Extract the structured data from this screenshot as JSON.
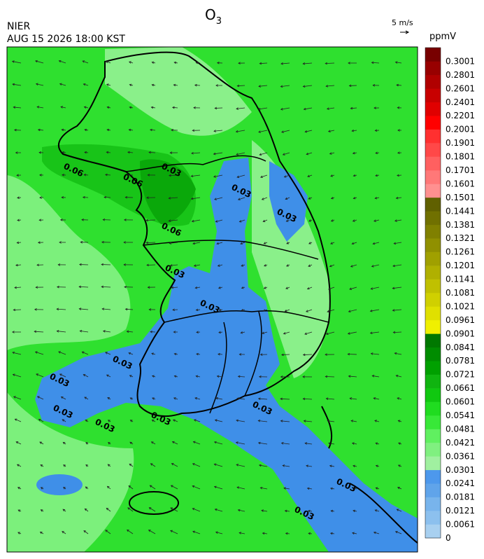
{
  "header": {
    "title": {
      "text": "O",
      "subscript": "3"
    },
    "source": "NIER",
    "datetime": "AUG 15 2026 18:00 KST",
    "wind_scale": "5 m/s"
  },
  "legend": {
    "unit": "ppmV",
    "labels": [
      "0",
      "0.0061",
      "0.0121",
      "0.0181",
      "0.0241",
      "0.0301",
      "0.0361",
      "0.0421",
      "0.0481",
      "0.0541",
      "0.0601",
      "0.0661",
      "0.0721",
      "0.0781",
      "0.0841",
      "0.0901",
      "0.0961",
      "0.1021",
      "0.1081",
      "0.1141",
      "0.1201",
      "0.1261",
      "0.1321",
      "0.1381",
      "0.1441",
      "0.1501",
      "0.1601",
      "0.1701",
      "0.1801",
      "0.1901",
      "0.2001",
      "0.2201",
      "0.2401",
      "0.2601",
      "0.2801",
      "0.3001"
    ],
    "colors": [
      "#a8d0f0",
      "#8cc0ee",
      "#78b4ec",
      "#60a4ea",
      "#4d98ec",
      "#a0f0a0",
      "#80f080",
      "#60f060",
      "#38e838",
      "#20dc20",
      "#10c810",
      "#10b410",
      "#00a000",
      "#008c00",
      "#007800",
      "#f0f000",
      "#e0e000",
      "#d0d000",
      "#c0c000",
      "#b0b000",
      "#a0a000",
      "#909000",
      "#808000",
      "#707000",
      "#606000",
      "#ff9090",
      "#ff7878",
      "#ff6060",
      "#ff4848",
      "#ff3030",
      "#ff0000",
      "#e00000",
      "#c80000",
      "#b00000",
      "#980000",
      "#780000"
    ]
  },
  "map": {
    "contour_labels": [
      "0.06",
      "0.06",
      "0.06",
      "0.03",
      "0.03",
      "0.03",
      "0.03",
      "0.03",
      "0.03",
      "0.03",
      "0.03",
      "0.03",
      "0.03",
      "0.03",
      "0.03",
      "0.03"
    ]
  }
}
